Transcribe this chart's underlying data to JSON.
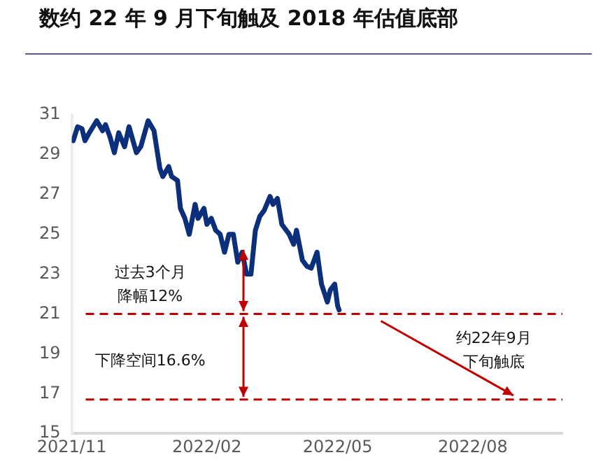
{
  "chart_data": {
    "type": "line",
    "title": "数约 22 年 9 月下旬触及 2018 年估值底部",
    "x": [
      "2021-11-02",
      "2021-11-05",
      "2021-11-08",
      "2021-11-10",
      "2021-11-13",
      "2021-11-18",
      "2021-11-22",
      "2021-11-24",
      "2021-11-27",
      "2021-11-30",
      "2021-12-03",
      "2021-12-07",
      "2021-12-10",
      "2021-12-15",
      "2021-12-18",
      "2021-12-23",
      "2021-12-27",
      "2021-12-31",
      "2022-01-02",
      "2022-01-06",
      "2022-01-08",
      "2022-01-12",
      "2022-01-14",
      "2022-01-17",
      "2022-01-20",
      "2022-01-24",
      "2022-01-26",
      "2022-01-30",
      "2022-02-01",
      "2022-02-04",
      "2022-02-07",
      "2022-02-10",
      "2022-02-13",
      "2022-02-16",
      "2022-02-19",
      "2022-02-22",
      "2022-02-25",
      "2022-02-28",
      "2022-03-03",
      "2022-03-06",
      "2022-03-09",
      "2022-03-12",
      "2022-03-16",
      "2022-03-18",
      "2022-03-21",
      "2022-03-24",
      "2022-03-29",
      "2022-04-01",
      "2022-04-03",
      "2022-04-07",
      "2022-04-10",
      "2022-04-13",
      "2022-04-17",
      "2022-04-20",
      "2022-04-24",
      "2022-04-26",
      "2022-04-29",
      "2022-05-01",
      "2022-05-02"
    ],
    "series": [
      {
        "color": "#0b2f7a",
        "values": [
          29.7,
          30.4,
          30.3,
          29.7,
          30.1,
          30.7,
          30.2,
          30.5,
          29.9,
          29.1,
          30.1,
          29.4,
          30.4,
          29.1,
          29.4,
          30.7,
          30.2,
          28.3,
          27.9,
          28.4,
          27.9,
          27.7,
          26.3,
          25.8,
          25.0,
          26.5,
          25.8,
          26.3,
          25.5,
          25.8,
          25.2,
          25.0,
          24.1,
          25.0,
          25.0,
          23.6,
          24.1,
          23.0,
          23.0,
          25.2,
          25.9,
          26.2,
          26.9,
          26.5,
          26.8,
          25.5,
          25.0,
          24.5,
          25.2,
          23.7,
          23.4,
          23.3,
          24.1,
          22.5,
          21.6,
          22.2,
          22.5,
          21.4,
          21.2
        ]
      }
    ],
    "xlim": [
      "2021-11-01",
      "2022-10-01"
    ],
    "xticks": [
      {
        "value": "2021-11-01",
        "label": "2021/11"
      },
      {
        "value": "2022-02-01",
        "label": "2022/02"
      },
      {
        "value": "2022-05-01",
        "label": "2022/05"
      },
      {
        "value": "2022-08-01",
        "label": "2022/08"
      }
    ],
    "ylim": [
      15,
      31
    ],
    "yticks": [
      15,
      17,
      19,
      21,
      23,
      25,
      27,
      29,
      31
    ],
    "grid": false,
    "legend": false,
    "marker": "none",
    "line_style": "solid",
    "ref_lines": [
      {
        "axis": "y",
        "value": 21,
        "color": "#c00000",
        "line_style": "dashed"
      },
      {
        "axis": "y",
        "value": 16.7,
        "color": "#c00000",
        "line_style": "dashed"
      }
    ],
    "annotations": [
      "过去3个月降幅12%",
      "下降空间16.6%",
      "约22年9月下旬触底"
    ]
  }
}
